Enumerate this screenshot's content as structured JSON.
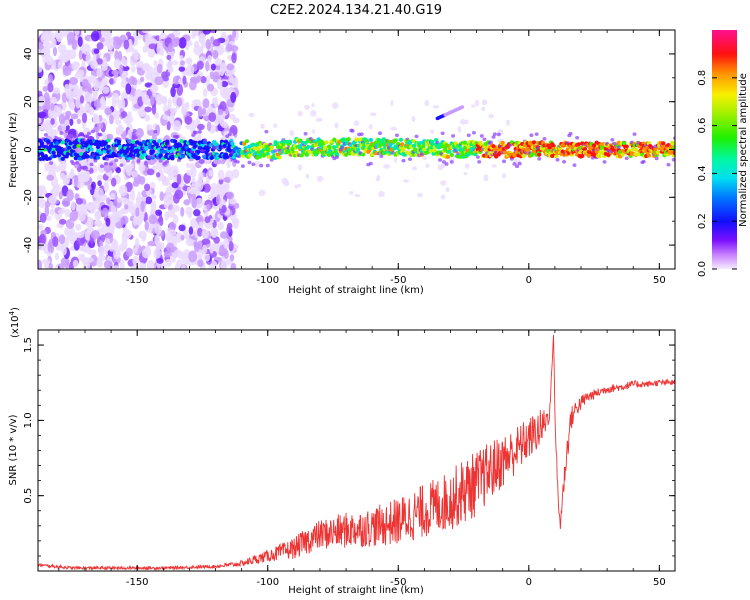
{
  "title": "C2E2.2024.134.21.40.G19",
  "chart_data": [
    {
      "type": "heatmap",
      "xlabel": "Height of straight line (km)",
      "ylabel": "Frequency (Hz)",
      "xlim": [
        -188,
        56
      ],
      "ylim": [
        -50,
        50
      ],
      "xticks": [
        -150,
        -100,
        -50,
        0,
        50
      ],
      "yticks": [
        -40,
        -20,
        0,
        20,
        40
      ],
      "colorbar": {
        "label": "Normalized spectral amplitude",
        "range": [
          0.0,
          1.0
        ],
        "ticks": [
          "0.0",
          "0.2",
          "0.4",
          "0.6",
          "0.8"
        ],
        "colormap": "rainbow (white/violet low → blue → cyan → green → yellow → red → magenta high)"
      },
      "features": {
        "noise_region_x": [
          -188,
          -112
        ],
        "central_band_freq_hz": 0,
        "central_band_halfwidth_hz": [
          2,
          5
        ],
        "diagonal_streak": {
          "from": [
            -35,
            13
          ],
          "to": [
            -25,
            18
          ]
        }
      }
    },
    {
      "type": "line",
      "xlabel": "Height of straight line (km)",
      "ylabel": "SNR (10 * v/v)",
      "y_multiplier": "(x10^4)",
      "xlim": [
        -188,
        56
      ],
      "ylim": [
        0,
        1.6
      ],
      "xticks": [
        -150,
        -100,
        -50,
        0,
        50
      ],
      "yticks": [
        0.5,
        1.0,
        1.5
      ],
      "ytick_labels": [
        "0.5",
        "1.0",
        "1.5"
      ],
      "series": [
        {
          "color": "#ee3333",
          "x": [
            -188,
            -175,
            -160,
            -140,
            -120,
            -110,
            -100,
            -90,
            -85,
            -80,
            -70,
            -60,
            -50,
            -40,
            -30,
            -25,
            -20,
            -15,
            -10,
            -5,
            0,
            5,
            8,
            9.5,
            10,
            11,
            12,
            14,
            16,
            18,
            22,
            26,
            30,
            35,
            40,
            45,
            50,
            56
          ],
          "y": [
            0.04,
            0.02,
            0.02,
            0.02,
            0.03,
            0.05,
            0.1,
            0.15,
            0.2,
            0.24,
            0.27,
            0.29,
            0.33,
            0.4,
            0.47,
            0.53,
            0.58,
            0.66,
            0.73,
            0.8,
            0.88,
            0.95,
            1.05,
            1.58,
            1.05,
            0.55,
            0.3,
            0.7,
            1.0,
            1.08,
            1.15,
            1.18,
            1.21,
            1.22,
            1.24,
            1.24,
            1.25,
            1.25
          ],
          "noise_amplitude": [
            0.01,
            0.01,
            0.01,
            0.01,
            0.01,
            0.02,
            0.04,
            0.07,
            0.09,
            0.1,
            0.12,
            0.13,
            0.16,
            0.18,
            0.2,
            0.22,
            0.22,
            0.2,
            0.18,
            0.16,
            0.14,
            0.13,
            0.05,
            0.0,
            0.05,
            0.1,
            0.05,
            0.1,
            0.08,
            0.06,
            0.04,
            0.03,
            0.03,
            0.025,
            0.025,
            0.02,
            0.02,
            0.02
          ]
        }
      ]
    }
  ]
}
